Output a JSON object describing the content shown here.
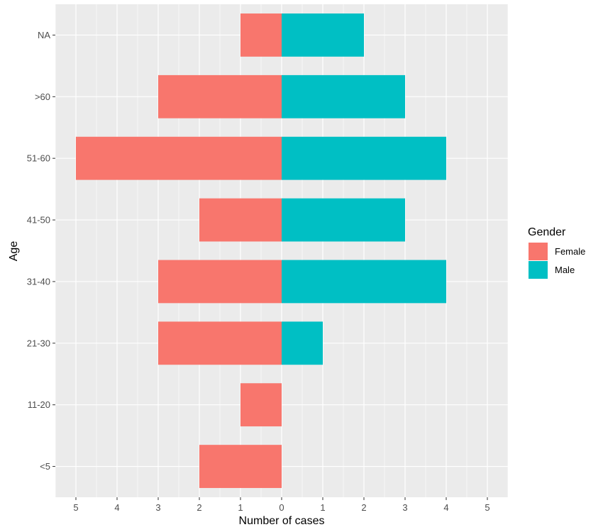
{
  "chart_data": {
    "type": "bar",
    "orientation": "horizontal",
    "style": "population-pyramid",
    "categories": [
      "<5",
      "11-20",
      "21-30",
      "31-40",
      "41-50",
      "51-60",
      ">60",
      "NA"
    ],
    "series": [
      {
        "name": "Female",
        "side": "left",
        "color": "#F8766D",
        "values": [
          2,
          1,
          3,
          3,
          2,
          5,
          3,
          1
        ]
      },
      {
        "name": "Male",
        "side": "right",
        "color": "#00BFC4",
        "values": [
          0,
          0,
          1,
          4,
          3,
          4,
          3,
          2
        ]
      }
    ],
    "xlabel": "Number of cases",
    "ylabel": "Age",
    "xlim": [
      -5.5,
      5.5
    ],
    "x_ticks": [
      -5,
      -4,
      -3,
      -2,
      -1,
      0,
      1,
      2,
      3,
      4,
      5
    ],
    "x_tick_labels": [
      "5",
      "4",
      "3",
      "2",
      "1",
      "0",
      "1",
      "2",
      "3",
      "4",
      "5"
    ],
    "legend": {
      "title": "Gender",
      "position": "right"
    },
    "grid": true,
    "panel_background": "#EBEBEB",
    "grid_color": "#FFFFFF"
  }
}
